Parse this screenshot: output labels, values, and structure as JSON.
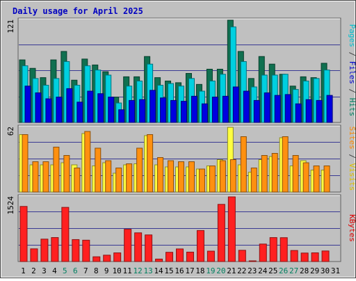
{
  "chart_data": {
    "type": "bar",
    "title": "Daily usage for April 2025",
    "categories": [
      "1",
      "2",
      "3",
      "4",
      "5",
      "6",
      "7",
      "8",
      "9",
      "10",
      "11",
      "12",
      "13",
      "14",
      "15",
      "16",
      "17",
      "18",
      "19",
      "20",
      "21",
      "22",
      "23",
      "24",
      "25",
      "26",
      "27",
      "28",
      "29",
      "30",
      "31"
    ],
    "weekend_days": [
      "5",
      "6",
      "12",
      "13",
      "19",
      "20",
      "26",
      "27"
    ],
    "panels": [
      {
        "id": "hits-files-pages",
        "ymax_label": "121",
        "ylim": [
          0,
          121
        ],
        "axis_label_parts": [
          {
            "text": "Pages",
            "color": "#00c0d0"
          },
          {
            "text": " / ",
            "color": "#404040"
          },
          {
            "text": "Files",
            "color": "#0000d0"
          },
          {
            "text": " / ",
            "color": "#404040"
          },
          {
            "text": "Hits",
            "color": "#008060"
          }
        ],
        "series": [
          {
            "name": "Hits",
            "color": "#107050",
            "values": [
              74,
              64,
              53,
              74,
              84,
              50,
              75,
              68,
              60,
              30,
              54,
              54,
              78,
              53,
              49,
              47,
              58,
              45,
              63,
              63,
              121,
              84,
              52,
              78,
              69,
              57,
              43,
              54,
              53,
              70,
              0
            ]
          },
          {
            "name": "Files",
            "color": "#00d0e0",
            "values": [
              67,
              52,
              44,
              52,
              72,
              44,
              67,
              62,
              56,
              23,
              43,
              49,
              69,
              44,
              46,
              43,
              52,
              37,
              49,
              57,
              113,
              72,
              42,
              56,
              56,
              57,
              39,
              49,
              52,
              62,
              0
            ]
          },
          {
            "name": "Pages",
            "color": "#0000e0",
            "values": [
              43,
              35,
              28,
              30,
              40,
              24,
              37,
              34,
              30,
              15,
              26,
              27,
              38,
              29,
              26,
              25,
              31,
              22,
              30,
              31,
              42,
              37,
              26,
              35,
              32,
              33,
              22,
              27,
              26,
              32,
              0
            ]
          }
        ]
      },
      {
        "id": "visits-sites",
        "ymax_label": "62",
        "ylim": [
          0,
          62
        ],
        "axis_label_parts": [
          {
            "text": "Sites",
            "color": "#ff8800"
          },
          {
            "text": " / ",
            "color": "#404040"
          },
          {
            "text": "Visits",
            "color": "#e0c000"
          }
        ],
        "series": [
          {
            "name": "Visits",
            "color": "#ffff40",
            "values": [
              55,
              26,
              26,
              26,
              28,
              26,
              56,
              25,
              28,
              18,
              26,
              27,
              54,
              26,
              24,
              24,
              24,
              22,
              25,
              31,
              62,
              26,
              19,
              31,
              34,
              52,
              25,
              30,
              21,
              21,
              0
            ]
          },
          {
            "name": "Sites",
            "color": "#ff9010",
            "values": [
              55,
              29,
              29,
              43,
              35,
              23,
              58,
              42,
              30,
              23,
              27,
              42,
              55,
              33,
              30,
              29,
              29,
              22,
              25,
              30,
              31,
              53,
              23,
              35,
              37,
              53,
              35,
              28,
              25,
              25,
              0
            ]
          }
        ]
      },
      {
        "id": "kbytes",
        "ymax_label": "1524",
        "ylim": [
          0,
          1524
        ],
        "axis_label_parts": [
          {
            "text": "KBytes",
            "color": "#e00000"
          }
        ],
        "series": [
          {
            "name": "KBytes",
            "color": "#ff2020",
            "values": [
              1298,
              299,
              528,
              565,
              1276,
              517,
              503,
              112,
              150,
              204,
              761,
              676,
              627,
              58,
              218,
              297,
              222,
              731,
              245,
              1347,
              1524,
              265,
              10,
              412,
              564,
              562,
              260,
              200,
              205,
              249,
              0
            ]
          }
        ]
      }
    ],
    "colors": {
      "background": "#c0c0c0",
      "panel_border": "#606060",
      "grid": "#000080",
      "title": "#0000c0",
      "tick_weekday": "#000000",
      "tick_weekend": "#008060"
    }
  }
}
